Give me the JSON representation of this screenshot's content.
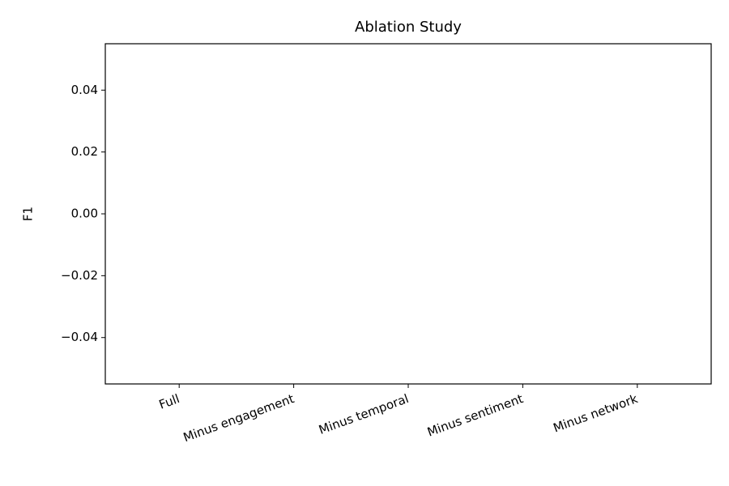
{
  "chart_data": {
    "type": "bar",
    "title": "Ablation Study",
    "ylabel": "F1",
    "categories": [
      "Full",
      "Minus engagement",
      "Minus temporal",
      "Minus sentiment",
      "Minus network"
    ],
    "ylim": [
      -0.055,
      0.055
    ],
    "yticks": [
      {
        "value": -0.04,
        "label": "−0.04"
      },
      {
        "value": -0.02,
        "label": "−0.02"
      },
      {
        "value": 0,
        "label": "0.00"
      },
      0.02,
      0.04
    ]
  }
}
